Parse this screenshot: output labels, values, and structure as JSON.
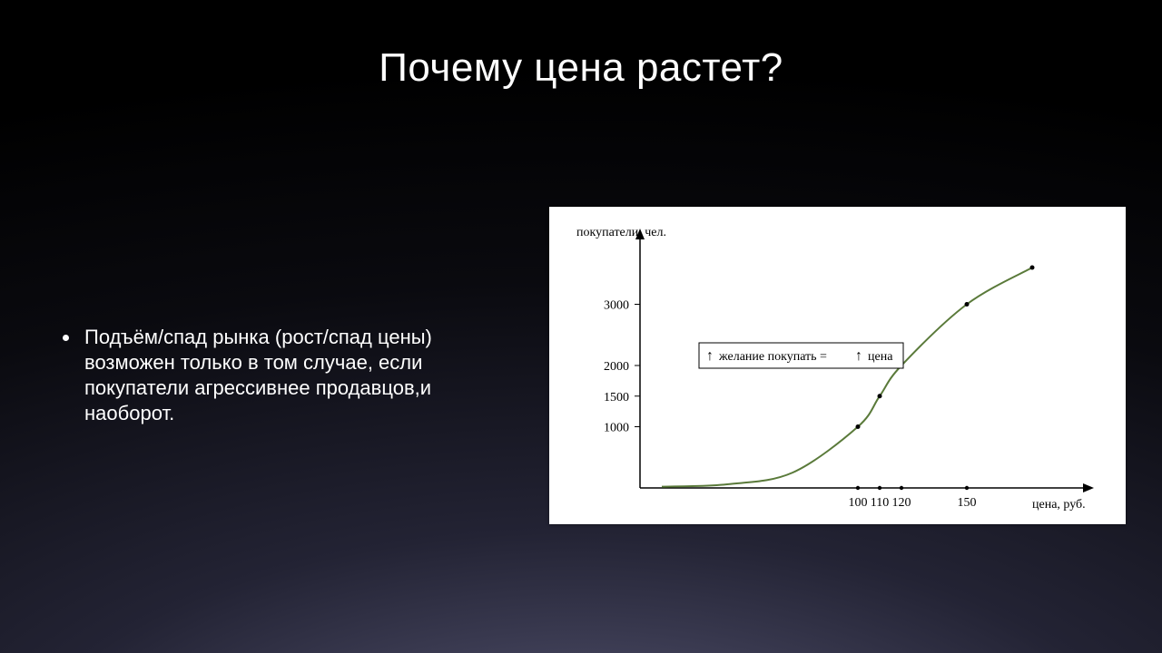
{
  "title": "Почему цена растет?",
  "bullet": "Подъём/спад рынка (рост/спад цены) возможен только в том случае, если покупатели агрессивнее продавцов,и наоборот.",
  "chart": {
    "type": "line",
    "panel_bg": "#ffffff",
    "axis_color": "#000000",
    "axis_stroke_width": 1.5,
    "y_axis_label": "покупатели, чел.",
    "x_axis_label": "цена, руб.",
    "label_fontsize": 14,
    "label_color": "#000000",
    "tick_fontsize": 14,
    "tick_color": "#000000",
    "curve_color": "#5a7a3a",
    "curve_width": 2,
    "marker_color": "#000000",
    "marker_radius": 2.5,
    "y_ticks": [
      {
        "value": 1000,
        "label": "1000"
      },
      {
        "value": 1500,
        "label": "1500"
      },
      {
        "value": 2000,
        "label": "2000"
      },
      {
        "value": 3000,
        "label": "3000"
      }
    ],
    "x_ticks": [
      {
        "value": 100,
        "label": "100"
      },
      {
        "value": 110,
        "label": "110"
      },
      {
        "value": 120,
        "label": "120"
      },
      {
        "value": 150,
        "label": "150"
      }
    ],
    "ylim": [
      0,
      4000
    ],
    "xlim": [
      0,
      200
    ],
    "data_points": [
      {
        "x": 100,
        "y": 1000
      },
      {
        "x": 110,
        "y": 1500
      },
      {
        "x": 120,
        "y": 2000
      },
      {
        "x": 150,
        "y": 3000
      },
      {
        "x": 180,
        "y": 3600
      }
    ],
    "callout": {
      "text_parts": [
        "желание покупать = ",
        "цена"
      ],
      "border_color": "#000000",
      "border_width": 1,
      "bg": "#ffffff",
      "fontsize": 14,
      "arrow_glyph": "↑"
    }
  }
}
